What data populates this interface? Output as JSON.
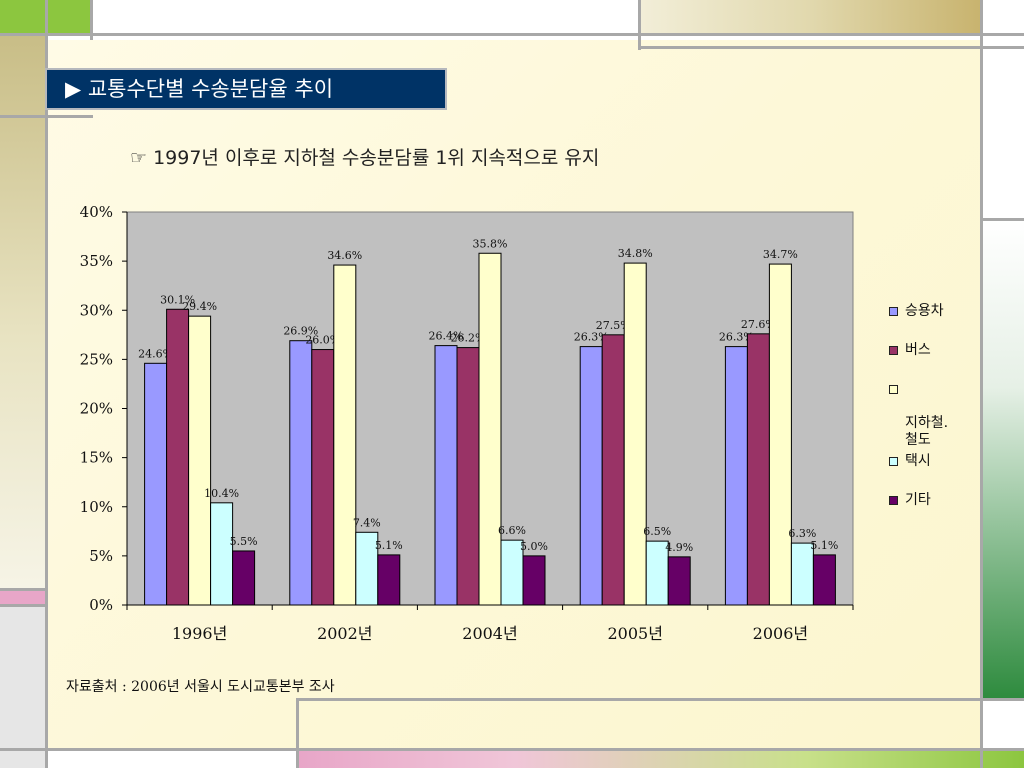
{
  "slide": {
    "title": "▶ 교통수단별 수송분담율 추이",
    "subtitle": "☞ 1997년 이후로 지하철 수송분담률 1위 지속적으로 유지",
    "source": "자료출처 : 2006년 서울시 도시교통본부 조사"
  },
  "chart_data": {
    "type": "bar",
    "categories": [
      "1996년",
      "2002년",
      "2004년",
      "2005년",
      "2006년"
    ],
    "series": [
      {
        "name": "승용차",
        "color": "#9999ff",
        "values": [
          24.6,
          26.9,
          26.4,
          26.3,
          26.3
        ],
        "labels": [
          "24.6%",
          "26.9%",
          "26.4%",
          "26.3%",
          "26.3%"
        ]
      },
      {
        "name": "버스",
        "color": "#993366",
        "values": [
          30.1,
          26.0,
          26.2,
          27.5,
          27.6
        ],
        "labels": [
          "30.1%",
          "26.0%",
          "26.2%",
          "27.5%",
          "27.6%"
        ]
      },
      {
        "name": "지하철.철도",
        "color": "#ffffcc",
        "values": [
          29.4,
          34.6,
          35.8,
          34.8,
          34.7
        ],
        "labels": [
          "29.4%",
          "34.6%",
          "35.8%",
          "34.8%",
          "34.7%"
        ]
      },
      {
        "name": "택시",
        "color": "#ccffff",
        "values": [
          10.4,
          7.4,
          6.6,
          6.5,
          6.3
        ],
        "labels": [
          "10.4%",
          "7.4%",
          "6.6%",
          "6.5%",
          "6.3%"
        ]
      },
      {
        "name": "기타",
        "color": "#660066",
        "values": [
          5.5,
          5.1,
          5.0,
          4.9,
          5.1
        ],
        "labels": [
          "5.5%",
          "5.1%",
          "5.0%",
          "4.9%",
          "5.1%"
        ]
      }
    ],
    "ylim": [
      0,
      40
    ],
    "yticks": [
      0,
      5,
      10,
      15,
      20,
      25,
      30,
      35,
      40
    ],
    "yticklabels": [
      "0%",
      "5%",
      "10%",
      "15%",
      "20%",
      "25%",
      "30%",
      "35%",
      "40%"
    ],
    "plot_background": "#c0c0c0",
    "grid": false,
    "legend": {
      "placement": "right",
      "entries": [
        "승용차",
        "버스",
        "지하철.\n철도",
        "택시",
        "기타"
      ]
    }
  }
}
